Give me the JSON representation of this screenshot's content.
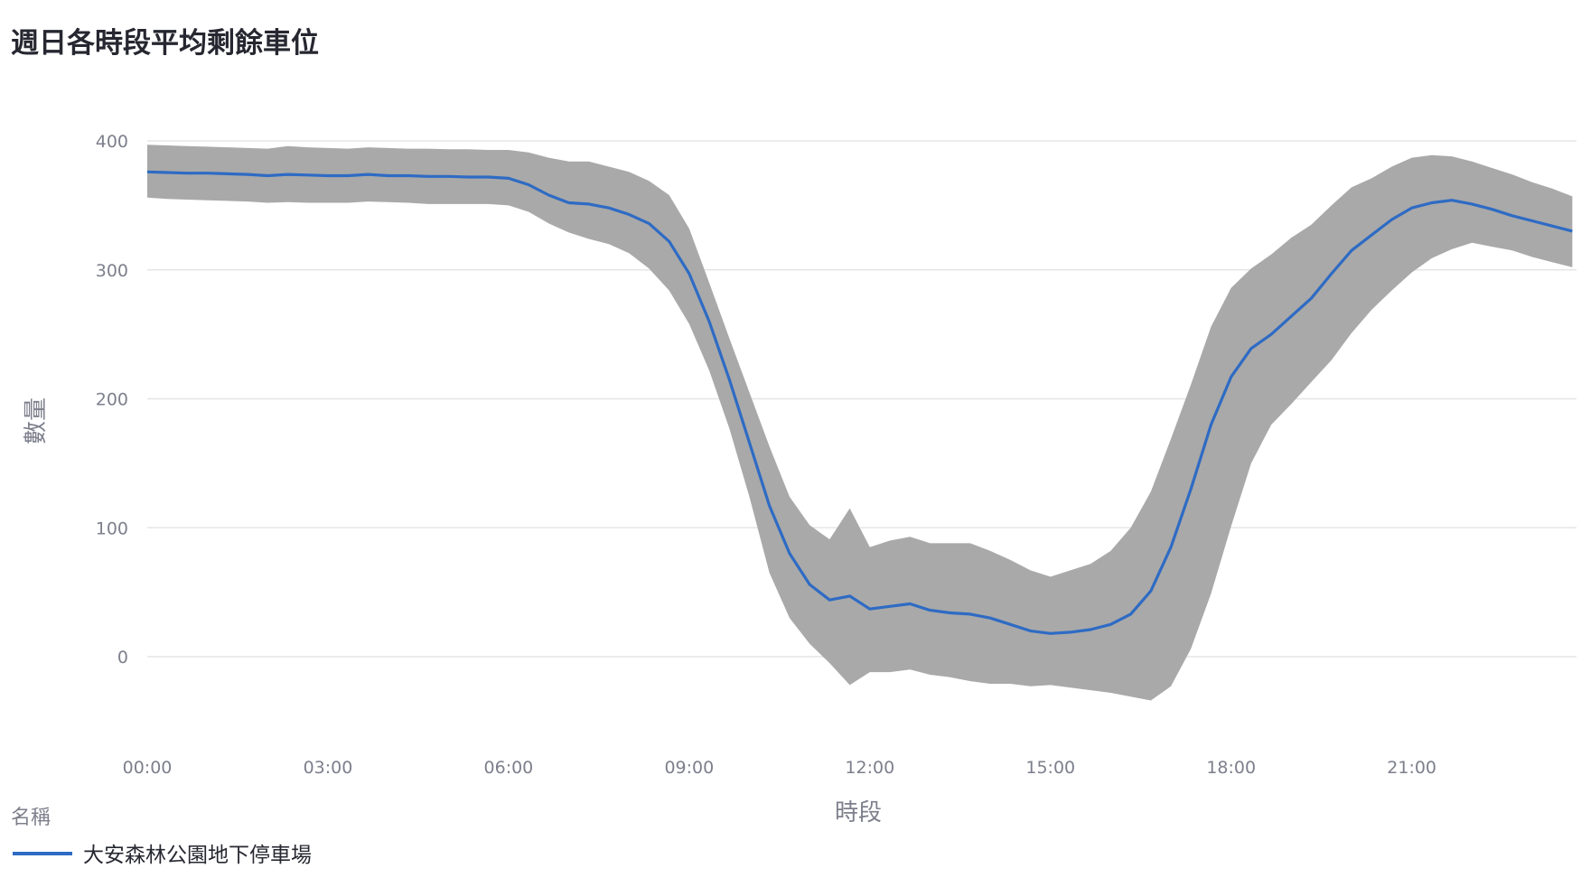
{
  "chart_data": {
    "type": "line",
    "title": "週日各時段平均剩餘車位",
    "xlabel": "時段",
    "ylabel": "數量",
    "x_ticks": [
      "00:00",
      "03:00",
      "06:00",
      "09:00",
      "12:00",
      "15:00",
      "18:00",
      "21:00"
    ],
    "y_ticks": [
      0,
      100,
      200,
      300,
      400
    ],
    "x_range_hours": [
      0,
      23.67
    ],
    "ylim": [
      -60,
      420
    ],
    "grid": true,
    "legend_title": "名稱",
    "legend_position": "bottom-left",
    "band_color": "#a9a9a9",
    "line_color": "#2e6bc4",
    "series": [
      {
        "name": "大安森林公園地下停車場",
        "x": [
          0,
          0.333,
          0.667,
          1,
          1.333,
          1.667,
          2,
          2.333,
          2.667,
          3,
          3.333,
          3.667,
          4,
          4.333,
          4.667,
          5,
          5.333,
          5.667,
          6,
          6.333,
          6.667,
          7,
          7.333,
          7.667,
          8,
          8.333,
          8.667,
          9,
          9.333,
          9.667,
          10,
          10.333,
          10.667,
          11,
          11.333,
          11.667,
          12,
          12.333,
          12.667,
          13,
          13.333,
          13.667,
          14,
          14.333,
          14.667,
          15,
          15.333,
          15.667,
          16,
          16.333,
          16.667,
          17,
          17.333,
          17.667,
          18,
          18.333,
          18.667,
          19,
          19.333,
          19.667,
          20,
          20.333,
          20.667,
          21,
          21.333,
          21.667,
          22,
          22.333,
          22.667,
          23,
          23.333,
          23.667
        ],
        "mean": [
          376,
          375.5,
          375,
          375,
          374.5,
          374,
          373,
          374,
          373.5,
          373,
          373,
          374,
          373,
          373,
          372.5,
          372.5,
          372,
          372,
          371,
          366,
          358,
          352,
          351,
          348,
          343,
          336,
          322,
          297,
          260,
          215,
          166,
          117,
          80,
          56,
          44,
          47,
          37,
          39,
          41,
          36,
          34,
          33,
          30,
          25,
          20,
          18,
          19,
          21,
          25,
          33,
          51,
          85,
          130,
          180,
          217,
          239,
          250,
          264,
          278,
          297,
          315,
          327,
          339,
          348,
          352,
          354,
          351,
          347,
          342,
          338,
          334,
          330
        ],
        "upper": [
          397,
          396.5,
          396,
          395.5,
          395,
          394.5,
          394,
          396,
          395,
          394.5,
          394,
          395,
          394.5,
          394,
          394,
          393.5,
          393.5,
          393,
          393,
          391,
          387,
          384,
          384,
          380,
          376,
          369,
          358,
          332,
          290,
          247,
          205,
          163,
          124,
          102,
          91,
          115,
          85,
          90,
          93,
          88,
          88,
          88,
          82,
          75,
          67,
          62,
          67,
          72,
          82,
          100,
          128,
          169,
          211,
          256,
          286,
          301,
          312,
          325,
          335,
          350,
          364,
          371,
          380,
          387,
          389,
          388,
          384,
          379,
          374,
          368,
          363,
          357
        ],
        "lower": [
          356,
          355,
          354.5,
          354,
          353.5,
          353,
          352,
          352.5,
          352,
          352,
          352,
          353,
          352.5,
          352,
          351,
          351,
          351,
          351,
          350,
          345,
          336,
          329,
          324,
          320,
          313,
          301,
          284,
          258,
          222,
          177,
          124,
          65,
          30,
          10,
          -5,
          -22,
          -12,
          -12,
          -10,
          -14,
          -16,
          -19,
          -21,
          -21,
          -23,
          -22,
          -24,
          -26,
          -28,
          -31,
          -34,
          -23,
          6,
          49,
          101,
          150,
          180,
          196,
          213,
          230,
          251,
          269,
          284,
          298,
          309,
          316,
          321,
          318,
          315,
          310,
          306,
          302
        ]
      }
    ]
  }
}
